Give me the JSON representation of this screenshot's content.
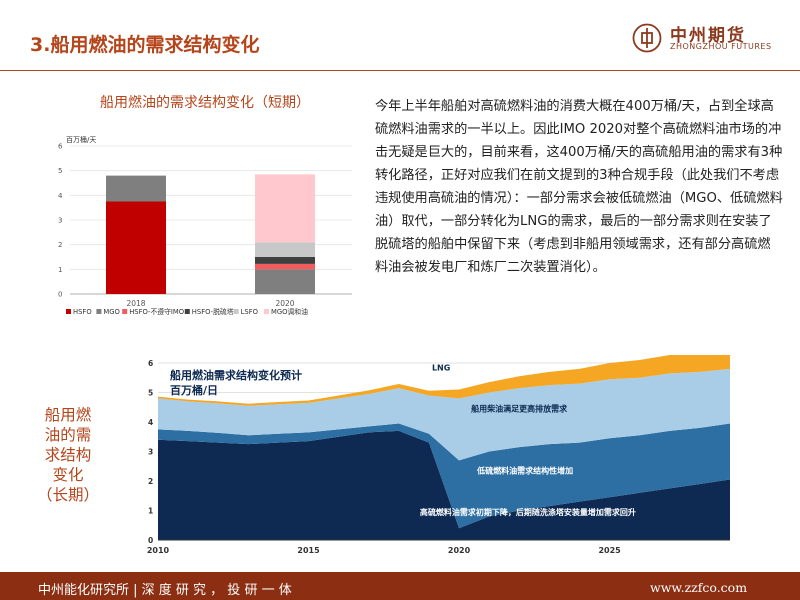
{
  "page": {
    "title": "3.船用燃油的需求结构变化"
  },
  "brand": {
    "name_cn": "中州期货",
    "name_en": "ZHONGZHOU FUTURES"
  },
  "short_term": {
    "title": "船用燃油的需求结构变化（短期）"
  },
  "paragraph": "今年上半年船舶对高硫燃料油的消费大概在400万桶/天，占到全球高硫燃料油需求的一半以上。因此IMO 2020对整个高硫燃料油市场的冲击无疑是巨大的，目前来看，这400万桶/天的高硫船用油的需求有3种转化路径，正好对应我们在前文提到的3种合规手段（此处我们不考虑违规使用高硫油的情况）：一部分需求会被低硫燃油（MGO、低硫燃料油）取代，一部分转化为LNG的需求，最后的一部分需求则在安装了脱硫塔的船舶中保留下来（考虑到非船用领域需求，还有部分高硫燃料油会被发电厂和炼厂二次装置消化）。",
  "long_term": {
    "label_lines": [
      "船用燃",
      "油的需",
      "求结构",
      "变化",
      "（长期）"
    ]
  },
  "footer": {
    "left": "中州能化研究所 | 深 度 研 究 ， 投 研 一 体",
    "right": "www.zzfco.com"
  },
  "chart_data": [
    {
      "type": "bar",
      "stacked": true,
      "ylabel": "百万桶/天",
      "ylim": [
        0,
        6
      ],
      "yticks": [
        "0",
        "1",
        "2",
        "3",
        "4",
        "5",
        "6"
      ],
      "categories": [
        "2018",
        "2020"
      ],
      "series": [
        {
          "name": "HSFO",
          "color": "#c00000",
          "values": [
            3.75,
            0
          ]
        },
        {
          "name": "MGO",
          "color": "#7f7f7f",
          "values": [
            1.05,
            0
          ]
        },
        {
          "name": "HSFO-不遵守IMO",
          "color": "#f25c5c",
          "values": [
            0,
            0.22
          ]
        },
        {
          "name": "HSFO-脱硫塔",
          "color": "#404040",
          "values": [
            0,
            0.28
          ]
        },
        {
          "name": "LSFO",
          "color": "#c8c8c8",
          "values": [
            0,
            0.6
          ]
        },
        {
          "name": "MGO调和油",
          "color": "#ffc7ce",
          "values": [
            0,
            2.75
          ]
        }
      ],
      "base_2020": {
        "color": "#7f7f7f",
        "value": 1.0
      },
      "legend_position": "bottom"
    },
    {
      "type": "area",
      "title": "船用燃油需求结构变化预计",
      "ylabel": "百万桶/日",
      "ylim": [
        0,
        6
      ],
      "yticks": [
        "0",
        "1",
        "2",
        "3",
        "4",
        "5",
        "6"
      ],
      "xticks": [
        "2010",
        "2015",
        "2020",
        "2025"
      ],
      "x": [
        2010,
        2011,
        2012,
        2013,
        2014,
        2015,
        2016,
        2017,
        2018,
        2019,
        2020,
        2021,
        2022,
        2023,
        2024,
        2025,
        2026,
        2027,
        2028,
        2029
      ],
      "series": [
        {
          "name": "高硫燃料油需求初期下降，后期随洗涤塔安装量增加需求回升",
          "color": "#0e2a52",
          "values": [
            3.4,
            3.35,
            3.3,
            3.25,
            3.3,
            3.35,
            3.5,
            3.65,
            3.7,
            3.3,
            0.4,
            0.8,
            1.0,
            1.15,
            1.3,
            1.45,
            1.6,
            1.75,
            1.9,
            2.05
          ]
        },
        {
          "name": "低硫燃料油需求结构性增加",
          "color": "#2d6fa3",
          "values": [
            0.35,
            0.35,
            0.33,
            0.3,
            0.3,
            0.3,
            0.25,
            0.2,
            0.25,
            0.3,
            2.3,
            2.2,
            2.15,
            2.1,
            2.0,
            2.0,
            1.95,
            1.95,
            1.9,
            1.9
          ]
        },
        {
          "name": "船用柴油满足更高排放需求",
          "color": "#a9cde6",
          "values": [
            1.05,
            1.0,
            1.0,
            1.0,
            1.0,
            1.0,
            1.05,
            1.1,
            1.2,
            1.3,
            2.1,
            2.0,
            2.0,
            2.0,
            2.0,
            2.0,
            1.95,
            1.95,
            1.9,
            1.85
          ]
        },
        {
          "name": "LNG",
          "color": "#f5a623",
          "values": [
            0.06,
            0.06,
            0.07,
            0.07,
            0.08,
            0.08,
            0.1,
            0.12,
            0.14,
            0.16,
            0.3,
            0.35,
            0.4,
            0.45,
            0.5,
            0.55,
            0.6,
            0.62,
            0.64,
            0.66
          ]
        }
      ]
    }
  ]
}
